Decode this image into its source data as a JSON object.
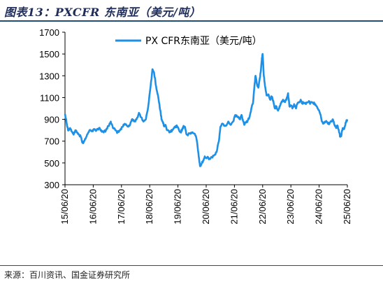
{
  "figure": {
    "title": "图表13：PXCFR 东南亚（美元/吨）",
    "source": "来源：百川资讯、国金证券研究所"
  },
  "colors": {
    "series": "#1e90e6",
    "title": "#1f2d5a",
    "rule": "#1f4e79"
  },
  "chart_data": {
    "type": "line",
    "xlabel": "",
    "ylabel": "",
    "ylim": [
      300,
      1700
    ],
    "yticks": [
      300,
      500,
      700,
      900,
      1100,
      1300,
      1500,
      1700
    ],
    "xticks": [
      "15/06/20",
      "16/06/20",
      "17/06/20",
      "18/06/20",
      "19/06/20",
      "20/06/20",
      "21/06/20",
      "22/06/20",
      "23/06/20",
      "24/06/20",
      "25/06/20"
    ],
    "legend_position": "top-center",
    "grid": false,
    "series": [
      {
        "name": "PX CFR东南亚（美元/吨）",
        "x": [
          "2015-06-20",
          "2015-07-05",
          "2015-07-20",
          "2015-08-05",
          "2015-08-25",
          "2015-09-15",
          "2015-10-10",
          "2015-11-01",
          "2015-11-25",
          "2015-12-15",
          "2016-01-10",
          "2016-01-25",
          "2016-02-10",
          "2016-03-05",
          "2016-04-01",
          "2016-05-01",
          "2016-06-01",
          "2016-07-01",
          "2016-08-01",
          "2016-09-01",
          "2016-10-01",
          "2016-11-01",
          "2016-12-01",
          "2017-01-01",
          "2017-02-01",
          "2017-03-01",
          "2017-04-01",
          "2017-05-01",
          "2017-06-01",
          "2017-07-01",
          "2017-08-01",
          "2017-09-01",
          "2017-10-01",
          "2017-11-01",
          "2017-12-01",
          "2018-01-01",
          "2018-02-01",
          "2018-03-01",
          "2018-04-01",
          "2018-05-01",
          "2018-06-01",
          "2018-07-01",
          "2018-07-25",
          "2018-08-15",
          "2018-09-01",
          "2018-09-15",
          "2018-10-01",
          "2018-10-20",
          "2018-11-05",
          "2018-11-20",
          "2018-12-05",
          "2018-12-20",
          "2019-01-10",
          "2019-02-01",
          "2019-03-01",
          "2019-03-20",
          "2019-04-10",
          "2019-05-01",
          "2019-05-25",
          "2019-06-15",
          "2019-07-05",
          "2019-07-25",
          "2019-08-15",
          "2019-09-01",
          "2019-09-20",
          "2019-10-10",
          "2019-11-01",
          "2019-11-25",
          "2019-12-20",
          "2020-01-15",
          "2020-02-05",
          "2020-02-25",
          "2020-03-15",
          "2020-04-01",
          "2020-04-20",
          "2020-05-10",
          "2020-06-01",
          "2020-07-01",
          "2020-08-01",
          "2020-09-01",
          "2020-10-01",
          "2020-11-01",
          "2020-12-01",
          "2020-12-20",
          "2021-01-10",
          "2021-02-01",
          "2021-03-01",
          "2021-04-01",
          "2021-05-01",
          "2021-06-01",
          "2021-07-01",
          "2021-08-01",
          "2021-09-01",
          "2021-09-20",
          "2021-10-05",
          "2021-10-25",
          "2021-11-15",
          "2021-12-05",
          "2022-01-01",
          "2022-01-25",
          "2022-02-15",
          "2022-03-05",
          "2022-03-20",
          "2022-04-05",
          "2022-04-25",
          "2022-05-10",
          "2022-05-25",
          "2022-06-08",
          "2022-06-20",
          "2022-07-05",
          "2022-07-20",
          "2022-08-10",
          "2022-09-01",
          "2022-09-25",
          "2022-10-15",
          "2022-11-05",
          "2022-11-25",
          "2022-12-15",
          "2023-01-05",
          "2023-01-25",
          "2023-02-15",
          "2023-03-10",
          "2023-04-01",
          "2023-04-25",
          "2023-05-15",
          "2023-06-01",
          "2023-06-20",
          "2023-07-10",
          "2023-08-01",
          "2023-08-25",
          "2023-09-15",
          "2023-10-05",
          "2023-10-25",
          "2023-11-15",
          "2023-12-05",
          "2024-01-01",
          "2024-02-01",
          "2024-03-01",
          "2024-04-01",
          "2024-05-01",
          "2024-06-01",
          "2024-06-20",
          "2024-07-10",
          "2024-07-25",
          "2024-08-15",
          "2024-09-05",
          "2024-09-25",
          "2024-10-15",
          "2024-11-05",
          "2024-11-25",
          "2024-12-15",
          "2025-01-05",
          "2025-01-25",
          "2025-02-15",
          "2025-03-05",
          "2025-03-20",
          "2025-04-05",
          "2025-04-20",
          "2025-05-05",
          "2025-05-20",
          "2025-06-05",
          "2025-06-20"
        ],
        "values": [
          950,
          900,
          830,
          800,
          820,
          790,
          760,
          800,
          780,
          760,
          740,
          700,
          680,
          720,
          760,
          800,
          790,
          810,
          800,
          820,
          800,
          780,
          800,
          840,
          880,
          820,
          800,
          780,
          800,
          830,
          860,
          840,
          840,
          900,
          880,
          900,
          960,
          920,
          880,
          900,
          1020,
          1200,
          1360,
          1330,
          1250,
          1180,
          1130,
          1050,
          980,
          900,
          880,
          840,
          850,
          800,
          780,
          790,
          800,
          820,
          840,
          830,
          800,
          780,
          810,
          840,
          830,
          760,
          760,
          770,
          780,
          770,
          750,
          680,
          560,
          470,
          490,
          520,
          560,
          550,
          540,
          550,
          570,
          600,
          700,
          830,
          860,
          850,
          840,
          880,
          850,
          880,
          940,
          920,
          900,
          940,
          900,
          850,
          870,
          880,
          920,
          1000,
          1050,
          1200,
          1300,
          1230,
          1190,
          1260,
          1330,
          1440,
          1500,
          1300,
          1210,
          1120,
          1130,
          1080,
          1110,
          1070,
          1000,
          1020,
          980,
          1020,
          1050,
          1080,
          1060,
          1080,
          1140,
          1020,
          1030,
          1000,
          1040,
          1000,
          1050,
          1060,
          1080,
          1050,
          1050,
          1040,
          1060,
          1050,
          1050,
          1040,
          1000,
          980,
          940,
          880,
          860,
          880,
          880,
          860,
          870,
          880,
          900,
          850,
          820,
          840,
          780,
          740,
          760,
          820,
          810,
          840,
          880,
          900
        ]
      }
    ]
  }
}
